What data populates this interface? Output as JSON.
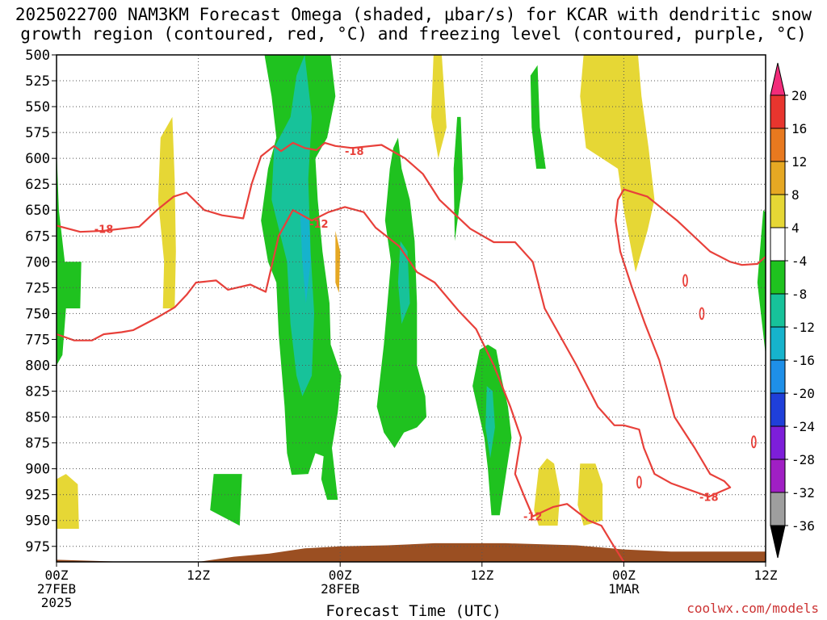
{
  "title_line1": "2025022700 NAM3KM Forecast Omega (shaded, μbar/s) for KCAR with dendritic snow",
  "title_line2": "growth region (contoured, red, °C) and freezing level (contoured, purple, °C)",
  "credit": "coolwx.com/models",
  "chart_data": {
    "type": "time-height cross section",
    "xlabel": "Forecast Time (UTC)",
    "x_ticks": [
      {
        "label": "00Z",
        "sub": "27FEB",
        "sub2": "2025",
        "hour": 0
      },
      {
        "label": "12Z",
        "sub": "",
        "sub2": "",
        "hour": 12
      },
      {
        "label": "00Z",
        "sub": "28FEB",
        "sub2": "",
        "hour": 24
      },
      {
        "label": "12Z",
        "sub": "",
        "sub2": "",
        "hour": 36
      },
      {
        "label": "00Z",
        "sub": "1MAR",
        "sub2": "",
        "hour": 48
      },
      {
        "label": "12Z",
        "sub": "",
        "sub2": "",
        "hour": 60
      }
    ],
    "xlim_hours": [
      0,
      60
    ],
    "y_ticks_hpa": [
      500,
      525,
      550,
      575,
      600,
      625,
      650,
      675,
      700,
      725,
      750,
      775,
      800,
      825,
      850,
      875,
      900,
      925,
      950,
      975
    ],
    "ylim_hpa": [
      500,
      990
    ],
    "grid": true,
    "colorbar": {
      "labels": [
        "20",
        "16",
        "12",
        "8",
        "4",
        "-4",
        "-8",
        "-12",
        "-16",
        "-20",
        "-24",
        "-28",
        "-32",
        "-36"
      ],
      "colors": [
        "#f22c7a",
        "#e8352e",
        "#e8791f",
        "#e6a823",
        "#e6d735",
        "#ffffff",
        "#1fc21f",
        "#17c29a",
        "#16b3cc",
        "#1e8fe8",
        "#1f3fd9",
        "#7d1ed9",
        "#a01fc4",
        "#9e9e9e",
        "#000000"
      ]
    },
    "contour_labels": [
      {
        "text": "-18",
        "hour": 4.0,
        "hpa": 668
      },
      {
        "text": "-18",
        "hour": 25.2,
        "hpa": 593
      },
      {
        "text": "-12",
        "hour": 22.2,
        "hpa": 663
      },
      {
        "text": "-12",
        "hour": 40.3,
        "hpa": 946
      },
      {
        "text": "-18",
        "hour": 55.2,
        "hpa": 927
      }
    ],
    "dgz_contours": [
      {
        "name": "",
        "points": [
          [
            0,
            665
          ],
          [
            2,
            671
          ],
          [
            4,
            670
          ],
          [
            7,
            666
          ],
          [
            8.5,
            650
          ],
          [
            9.9,
            637
          ],
          [
            11,
            633
          ],
          [
            12.5,
            650
          ],
          [
            14,
            655
          ],
          [
            15.8,
            658
          ],
          [
            16.5,
            625
          ],
          [
            17.3,
            598
          ],
          [
            18.4,
            588
          ],
          [
            19,
            593
          ],
          [
            20,
            585
          ],
          [
            21,
            590
          ],
          [
            22,
            592
          ],
          [
            22.7,
            585
          ],
          [
            23.6,
            588
          ],
          [
            25,
            590
          ],
          [
            27.5,
            587
          ],
          [
            29.5,
            600
          ],
          [
            31,
            615
          ],
          [
            32.4,
            640
          ],
          [
            35,
            668
          ],
          [
            37,
            681
          ],
          [
            38.8,
            681
          ],
          [
            40.3,
            700
          ],
          [
            41.3,
            745
          ],
          [
            44,
            800
          ],
          [
            45.8,
            840
          ],
          [
            47.2,
            858
          ],
          [
            48,
            858
          ],
          [
            49.3,
            862
          ],
          [
            49.7,
            880
          ],
          [
            50.6,
            905
          ],
          [
            52,
            914
          ],
          [
            55.2,
            927
          ],
          [
            57,
            918
          ],
          [
            56.5,
            912
          ],
          [
            55.3,
            905
          ],
          [
            54,
            880
          ],
          [
            52.3,
            850
          ],
          [
            51,
            795
          ],
          [
            49.8,
            760
          ],
          [
            48.7,
            725
          ],
          [
            47.7,
            690
          ],
          [
            47.3,
            660
          ],
          [
            47.5,
            640
          ],
          [
            48,
            630
          ],
          [
            50,
            637
          ],
          [
            52.5,
            660
          ],
          [
            55.3,
            690
          ],
          [
            57,
            700
          ],
          [
            58,
            703
          ],
          [
            59.3,
            702
          ],
          [
            60.5,
            690
          ]
        ]
      },
      {
        "name": "",
        "points": [
          [
            0,
            770
          ],
          [
            1.5,
            776
          ],
          [
            3,
            776
          ],
          [
            4,
            770
          ],
          [
            5.5,
            768
          ],
          [
            6.5,
            766
          ],
          [
            8.5,
            754
          ],
          [
            10,
            744
          ],
          [
            11,
            732
          ],
          [
            11.8,
            720
          ],
          [
            13.5,
            718
          ],
          [
            14.5,
            727
          ],
          [
            16.4,
            722
          ],
          [
            17.7,
            729
          ],
          [
            18.8,
            675
          ],
          [
            20,
            650
          ],
          [
            21.6,
            660
          ],
          [
            23,
            652
          ],
          [
            24.4,
            647
          ],
          [
            26,
            652
          ],
          [
            27,
            667
          ],
          [
            29,
            685
          ],
          [
            30.5,
            710
          ],
          [
            32,
            720
          ],
          [
            34,
            747
          ],
          [
            35.5,
            765
          ],
          [
            37,
            800
          ],
          [
            38.4,
            840
          ],
          [
            39.3,
            870
          ],
          [
            38.8,
            905
          ],
          [
            39.7,
            930
          ],
          [
            40.3,
            946
          ],
          [
            42,
            937
          ],
          [
            43.2,
            934
          ],
          [
            45,
            950
          ],
          [
            46.1,
            955
          ],
          [
            47,
            972
          ],
          [
            48,
            990
          ]
        ]
      }
    ],
    "omega_regions_ubar_s": [
      {
        "level": "-4",
        "color": "#1fc21f",
        "points": [
          [
            17.6,
            500
          ],
          [
            18.2,
            540
          ],
          [
            18.6,
            580
          ],
          [
            17.9,
            610
          ],
          [
            17.3,
            660
          ],
          [
            17.9,
            700
          ],
          [
            18.6,
            720
          ],
          [
            18.8,
            770
          ],
          [
            19.3,
            840
          ],
          [
            19.5,
            885
          ],
          [
            19.9,
            906
          ],
          [
            21.3,
            905
          ],
          [
            21.9,
            885
          ],
          [
            22.6,
            888
          ],
          [
            22.4,
            910
          ],
          [
            22.9,
            930
          ],
          [
            23.8,
            930
          ],
          [
            23.3,
            880
          ],
          [
            23.8,
            845
          ],
          [
            24.1,
            810
          ],
          [
            23.2,
            780
          ],
          [
            23.1,
            740
          ],
          [
            22.5,
            690
          ],
          [
            22.1,
            640
          ],
          [
            21.9,
            600
          ],
          [
            22.9,
            580
          ],
          [
            23.6,
            540
          ],
          [
            23.2,
            500
          ]
        ]
      },
      {
        "level": "-4",
        "color": "#1fc21f",
        "points": [
          [
            28.2,
            610
          ],
          [
            27.8,
            660
          ],
          [
            28.3,
            700
          ],
          [
            27.7,
            780
          ],
          [
            27.1,
            840
          ],
          [
            27.7,
            865
          ],
          [
            28.6,
            880
          ],
          [
            29.4,
            865
          ],
          [
            30.5,
            860
          ],
          [
            31.3,
            850
          ],
          [
            31.2,
            830
          ],
          [
            30.5,
            800
          ],
          [
            30.5,
            740
          ],
          [
            30.3,
            680
          ],
          [
            29.9,
            640
          ],
          [
            29.2,
            610
          ],
          [
            28.9,
            580
          ],
          [
            28.5,
            590
          ]
        ]
      },
      {
        "level": "-4",
        "color": "#1fc21f",
        "points": [
          [
            35.8,
            785
          ],
          [
            35.2,
            820
          ],
          [
            35.6,
            840
          ],
          [
            36.2,
            870
          ],
          [
            36.5,
            900
          ],
          [
            36.8,
            945
          ],
          [
            37.5,
            945
          ],
          [
            38.1,
            900
          ],
          [
            38.5,
            870
          ],
          [
            38.2,
            840
          ],
          [
            37.7,
            815
          ],
          [
            37.2,
            785
          ],
          [
            36.5,
            780
          ]
        ]
      },
      {
        "level": "4",
        "color": "#e6d735",
        "points": [
          [
            44.6,
            500
          ],
          [
            44.3,
            540
          ],
          [
            44.8,
            590
          ],
          [
            47.5,
            610
          ],
          [
            48,
            650
          ],
          [
            49,
            710
          ],
          [
            50,
            670
          ],
          [
            50.6,
            640
          ],
          [
            50.1,
            590
          ],
          [
            49.5,
            540
          ],
          [
            49.2,
            500
          ]
        ]
      },
      {
        "level": "4",
        "color": "#e6d735",
        "points": [
          [
            8.8,
            580
          ],
          [
            8.6,
            640
          ],
          [
            9.1,
            700
          ],
          [
            9,
            745
          ],
          [
            10,
            745
          ],
          [
            10.1,
            690
          ],
          [
            10,
            620
          ],
          [
            9.8,
            560
          ]
        ]
      },
      {
        "level": "4",
        "color": "#e6d735",
        "points": [
          [
            0,
            910
          ],
          [
            0,
            958
          ],
          [
            1.9,
            958
          ],
          [
            1.8,
            915
          ],
          [
            0.8,
            905
          ]
        ]
      },
      {
        "level": "4",
        "color": "#e6d735",
        "points": [
          [
            40.8,
            900
          ],
          [
            40.4,
            940
          ],
          [
            40.8,
            955
          ],
          [
            42.4,
            955
          ],
          [
            42.6,
            925
          ],
          [
            42.1,
            895
          ],
          [
            41.5,
            890
          ]
        ]
      },
      {
        "level": "4",
        "color": "#e6d735",
        "points": [
          [
            44.3,
            895
          ],
          [
            44.1,
            935
          ],
          [
            44.6,
            955
          ],
          [
            46.2,
            950
          ],
          [
            46.2,
            915
          ],
          [
            45.6,
            895
          ]
        ]
      },
      {
        "level": "4",
        "color": "#e6d735",
        "points": [
          [
            31.9,
            500
          ],
          [
            31.7,
            560
          ],
          [
            32.3,
            600
          ],
          [
            33,
            570
          ],
          [
            32.6,
            500
          ]
        ]
      },
      {
        "level": "-4",
        "color": "#1fc21f",
        "points": [
          [
            33.7,
            680
          ],
          [
            33.6,
            610
          ],
          [
            33.9,
            560
          ],
          [
            34.2,
            560
          ],
          [
            34.4,
            620
          ]
        ]
      },
      {
        "level": "-4",
        "color": "#1fc21f",
        "points": [
          [
            40.1,
            520
          ],
          [
            40.2,
            570
          ],
          [
            40.6,
            610
          ],
          [
            41.4,
            610
          ],
          [
            40.9,
            570
          ],
          [
            40.7,
            510
          ]
        ]
      },
      {
        "level": "-4",
        "color": "#1fc21f",
        "points": [
          [
            59.8,
            650
          ],
          [
            59.3,
            720
          ],
          [
            60,
            790
          ],
          [
            60.6,
            780
          ],
          [
            60.7,
            660
          ]
        ]
      },
      {
        "level": "-4",
        "color": "#1fc21f",
        "points": [
          [
            13.3,
            905
          ],
          [
            13,
            940
          ],
          [
            15.5,
            955
          ],
          [
            15.7,
            905
          ]
        ]
      },
      {
        "level": "-4",
        "color": "#1fc21f",
        "points": [
          [
            0,
            590
          ],
          [
            0.2,
            650
          ],
          [
            0.7,
            700
          ],
          [
            2.1,
            700
          ],
          [
            2,
            745
          ],
          [
            0.8,
            745
          ],
          [
            0.5,
            790
          ],
          [
            0,
            800
          ]
        ]
      }
    ],
    "terrain_color": "#9b4f22"
  }
}
